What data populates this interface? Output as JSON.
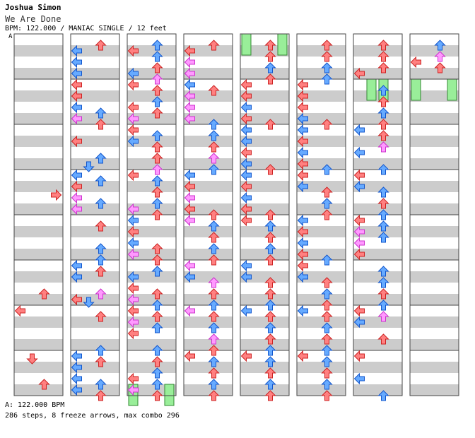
{
  "header": {
    "artist": "Joshua Simon",
    "title": "We Are Done",
    "meta": "BPM: 122.000 / MANIAC SINGLE / 12 feet",
    "bpm_marker": "A"
  },
  "footer": {
    "bpm_reference": "A: 122.000 BPM",
    "summary": "286 steps, 8 freeze arrows, max combo 296"
  },
  "colors": {
    "quarter": "#ff8080",
    "eighth": "#66aaff",
    "sixteenth": "#ff99ff",
    "freeze": "#99ee99",
    "stripe": "#cccccc"
  },
  "chart_data": {
    "type": "table",
    "columns": 8,
    "measures_per_column": 8,
    "lanes": [
      "left",
      "down",
      "up",
      "right"
    ],
    "notes": [
      [
        0,
        3,
        7,
        "r"
      ],
      [
        0,
        5,
        10,
        "r"
      ],
      [
        0,
        6,
        0,
        "r"
      ],
      [
        0,
        7,
        1,
        "r"
      ],
      [
        0,
        7,
        10,
        "r"
      ],
      [
        1,
        0,
        2,
        "r"
      ],
      [
        1,
        0,
        4,
        "b"
      ],
      [
        1,
        0,
        8,
        "b"
      ],
      [
        1,
        0,
        12,
        "b"
      ],
      [
        1,
        1,
        0,
        "r"
      ],
      [
        1,
        1,
        4,
        "r"
      ],
      [
        1,
        1,
        8,
        "b"
      ],
      [
        1,
        1,
        10,
        "b"
      ],
      [
        1,
        1,
        12,
        "m"
      ],
      [
        1,
        1,
        14,
        "r"
      ],
      [
        1,
        2,
        4,
        "r"
      ],
      [
        1,
        2,
        10,
        "b"
      ],
      [
        1,
        2,
        13,
        "b"
      ],
      [
        1,
        3,
        0,
        "b"
      ],
      [
        1,
        3,
        2,
        "b"
      ],
      [
        1,
        3,
        4,
        "r"
      ],
      [
        1,
        3,
        8,
        "m"
      ],
      [
        1,
        3,
        10,
        "b"
      ],
      [
        1,
        3,
        12,
        "m"
      ],
      [
        1,
        4,
        2,
        "r"
      ],
      [
        1,
        4,
        10,
        "b"
      ],
      [
        1,
        4,
        14,
        "b"
      ],
      [
        1,
        5,
        0,
        "b"
      ],
      [
        1,
        5,
        2,
        "r"
      ],
      [
        1,
        5,
        4,
        "b"
      ],
      [
        1,
        5,
        10,
        "m"
      ],
      [
        1,
        5,
        12,
        "r"
      ],
      [
        1,
        5,
        13,
        "b"
      ],
      [
        1,
        6,
        2,
        "r"
      ],
      [
        1,
        6,
        14,
        "b"
      ],
      [
        1,
        7,
        0,
        "b"
      ],
      [
        1,
        7,
        2,
        "r"
      ],
      [
        1,
        7,
        4,
        "b"
      ],
      [
        1,
        7,
        8,
        "b"
      ],
      [
        1,
        7,
        10,
        "b"
      ],
      [
        1,
        7,
        12,
        "b"
      ],
      [
        1,
        7,
        14,
        "r"
      ],
      [
        2,
        0,
        2,
        "b"
      ],
      [
        2,
        0,
        4,
        "r"
      ],
      [
        2,
        0,
        6,
        "b"
      ],
      [
        2,
        0,
        10,
        "r"
      ],
      [
        2,
        0,
        12,
        "b"
      ],
      [
        2,
        0,
        14,
        "m"
      ],
      [
        2,
        1,
        0,
        "r"
      ],
      [
        2,
        1,
        2,
        "r"
      ],
      [
        2,
        1,
        6,
        "b"
      ],
      [
        2,
        1,
        8,
        "r"
      ],
      [
        2,
        1,
        10,
        "r"
      ],
      [
        2,
        1,
        12,
        "m"
      ],
      [
        2,
        2,
        0,
        "r"
      ],
      [
        2,
        2,
        2,
        "b"
      ],
      [
        2,
        2,
        4,
        "b"
      ],
      [
        2,
        2,
        6,
        "r"
      ],
      [
        2,
        2,
        10,
        "r"
      ],
      [
        2,
        2,
        14,
        "m"
      ],
      [
        2,
        3,
        0,
        "r"
      ],
      [
        2,
        3,
        2,
        "b"
      ],
      [
        2,
        3,
        6,
        "r"
      ],
      [
        2,
        3,
        10,
        "b"
      ],
      [
        2,
        3,
        12,
        "m"
      ],
      [
        2,
        3,
        14,
        "r"
      ],
      [
        2,
        4,
        0,
        "b"
      ],
      [
        2,
        4,
        4,
        "r"
      ],
      [
        2,
        4,
        8,
        "b"
      ],
      [
        2,
        4,
        10,
        "r"
      ],
      [
        2,
        4,
        12,
        "m"
      ],
      [
        2,
        4,
        14,
        "r"
      ],
      [
        2,
        5,
        2,
        "b"
      ],
      [
        2,
        5,
        4,
        "b"
      ],
      [
        2,
        5,
        8,
        "r"
      ],
      [
        2,
        5,
        10,
        "r"
      ],
      [
        2,
        5,
        12,
        "m"
      ],
      [
        2,
        5,
        14,
        "b"
      ],
      [
        2,
        6,
        0,
        "r"
      ],
      [
        2,
        6,
        2,
        "r"
      ],
      [
        2,
        6,
        4,
        "m"
      ],
      [
        2,
        6,
        6,
        "b"
      ],
      [
        2,
        6,
        8,
        "r"
      ],
      [
        2,
        6,
        14,
        "b"
      ],
      [
        2,
        7,
        2,
        "r"
      ],
      [
        2,
        7,
        6,
        "b"
      ],
      [
        2,
        7,
        8,
        "r"
      ],
      [
        2,
        7,
        10,
        "b"
      ],
      [
        2,
        7,
        12,
        "m"
      ],
      [
        2,
        7,
        14,
        "r"
      ],
      [
        3,
        0,
        2,
        "r"
      ],
      [
        3,
        0,
        4,
        "r"
      ],
      [
        3,
        0,
        8,
        "m"
      ],
      [
        3,
        0,
        12,
        "m"
      ],
      [
        3,
        1,
        0,
        "b"
      ],
      [
        3,
        1,
        2,
        "r"
      ],
      [
        3,
        1,
        4,
        "m"
      ],
      [
        3,
        1,
        8,
        "m"
      ],
      [
        3,
        1,
        12,
        "m"
      ],
      [
        3,
        1,
        14,
        "b"
      ],
      [
        3,
        2,
        2,
        "b"
      ],
      [
        3,
        2,
        6,
        "r"
      ],
      [
        3,
        2,
        10,
        "m"
      ],
      [
        3,
        2,
        14,
        "b"
      ],
      [
        3,
        3,
        0,
        "b"
      ],
      [
        3,
        3,
        4,
        "r"
      ],
      [
        3,
        3,
        8,
        "m"
      ],
      [
        3,
        3,
        12,
        "r"
      ],
      [
        3,
        3,
        14,
        "r"
      ],
      [
        3,
        4,
        0,
        "m"
      ],
      [
        3,
        4,
        2,
        "b"
      ],
      [
        3,
        4,
        6,
        "r"
      ],
      [
        3,
        4,
        10,
        "b"
      ],
      [
        3,
        4,
        14,
        "r"
      ],
      [
        3,
        5,
        0,
        "m"
      ],
      [
        3,
        5,
        4,
        "b"
      ],
      [
        3,
        5,
        6,
        "m"
      ],
      [
        3,
        5,
        10,
        "r"
      ],
      [
        3,
        5,
        14,
        "b"
      ],
      [
        3,
        6,
        0,
        "m"
      ],
      [
        3,
        6,
        2,
        "r"
      ],
      [
        3,
        6,
        6,
        "b"
      ],
      [
        3,
        6,
        10,
        "m"
      ],
      [
        3,
        6,
        14,
        "r"
      ],
      [
        3,
        7,
        0,
        "r"
      ],
      [
        3,
        7,
        2,
        "b"
      ],
      [
        3,
        7,
        6,
        "r"
      ],
      [
        3,
        7,
        10,
        "b"
      ],
      [
        3,
        7,
        14,
        "r"
      ],
      [
        4,
        0,
        2,
        "r"
      ],
      [
        4,
        0,
        6,
        "r"
      ],
      [
        4,
        0,
        10,
        "b"
      ],
      [
        4,
        0,
        14,
        "r"
      ],
      [
        4,
        1,
        0,
        "r"
      ],
      [
        4,
        1,
        4,
        "r"
      ],
      [
        4,
        1,
        8,
        "b"
      ],
      [
        4,
        1,
        12,
        "r"
      ],
      [
        4,
        1,
        14,
        "r"
      ],
      [
        4,
        2,
        0,
        "b"
      ],
      [
        4,
        2,
        4,
        "b"
      ],
      [
        4,
        2,
        8,
        "r"
      ],
      [
        4,
        2,
        12,
        "b"
      ],
      [
        4,
        2,
        14,
        "r"
      ],
      [
        4,
        3,
        0,
        "b"
      ],
      [
        4,
        3,
        4,
        "r"
      ],
      [
        4,
        3,
        8,
        "b"
      ],
      [
        4,
        3,
        12,
        "r"
      ],
      [
        4,
        3,
        14,
        "r"
      ],
      [
        4,
        4,
        0,
        "r"
      ],
      [
        4,
        4,
        2,
        "b"
      ],
      [
        4,
        4,
        6,
        "r"
      ],
      [
        4,
        4,
        10,
        "b"
      ],
      [
        4,
        4,
        14,
        "r"
      ],
      [
        4,
        5,
        0,
        "b"
      ],
      [
        4,
        5,
        4,
        "b"
      ],
      [
        4,
        5,
        6,
        "r"
      ],
      [
        4,
        5,
        10,
        "r"
      ],
      [
        4,
        5,
        14,
        "b"
      ],
      [
        4,
        6,
        0,
        "b"
      ],
      [
        4,
        6,
        2,
        "r"
      ],
      [
        4,
        6,
        6,
        "b"
      ],
      [
        4,
        6,
        10,
        "r"
      ],
      [
        4,
        6,
        14,
        "b"
      ],
      [
        4,
        7,
        0,
        "r"
      ],
      [
        4,
        7,
        2,
        "b"
      ],
      [
        4,
        7,
        6,
        "r"
      ],
      [
        4,
        7,
        10,
        "b"
      ],
      [
        4,
        7,
        14,
        "r"
      ],
      [
        5,
        0,
        2,
        "r"
      ],
      [
        5,
        0,
        6,
        "r"
      ],
      [
        5,
        0,
        10,
        "b"
      ],
      [
        5,
        0,
        14,
        "b"
      ],
      [
        5,
        1,
        0,
        "r"
      ],
      [
        5,
        1,
        4,
        "r"
      ],
      [
        5,
        1,
        8,
        "r"
      ],
      [
        5,
        1,
        12,
        "b"
      ],
      [
        5,
        1,
        14,
        "r"
      ],
      [
        5,
        2,
        0,
        "b"
      ],
      [
        5,
        2,
        4,
        "r"
      ],
      [
        5,
        2,
        8,
        "b"
      ],
      [
        5,
        2,
        12,
        "r"
      ],
      [
        5,
        2,
        14,
        "b"
      ],
      [
        5,
        3,
        0,
        "r"
      ],
      [
        5,
        3,
        4,
        "b"
      ],
      [
        5,
        3,
        6,
        "r"
      ],
      [
        5,
        3,
        10,
        "b"
      ],
      [
        5,
        3,
        14,
        "r"
      ],
      [
        5,
        4,
        0,
        "b"
      ],
      [
        5,
        4,
        4,
        "r"
      ],
      [
        5,
        4,
        8,
        "b"
      ],
      [
        5,
        4,
        12,
        "r"
      ],
      [
        5,
        4,
        14,
        "b"
      ],
      [
        5,
        5,
        0,
        "r"
      ],
      [
        5,
        5,
        4,
        "b"
      ],
      [
        5,
        5,
        6,
        "r"
      ],
      [
        5,
        5,
        10,
        "b"
      ],
      [
        5,
        5,
        14,
        "r"
      ],
      [
        5,
        6,
        0,
        "b"
      ],
      [
        5,
        6,
        2,
        "r"
      ],
      [
        5,
        6,
        6,
        "b"
      ],
      [
        5,
        6,
        10,
        "r"
      ],
      [
        5,
        6,
        14,
        "b"
      ],
      [
        5,
        7,
        0,
        "r"
      ],
      [
        5,
        7,
        2,
        "b"
      ],
      [
        5,
        7,
        6,
        "r"
      ],
      [
        5,
        7,
        10,
        "b"
      ],
      [
        5,
        7,
        14,
        "r"
      ],
      [
        6,
        0,
        2,
        "r"
      ],
      [
        6,
        0,
        6,
        "r"
      ],
      [
        6,
        0,
        10,
        "r"
      ],
      [
        6,
        0,
        12,
        "r"
      ],
      [
        6,
        1,
        2,
        "b"
      ],
      [
        6,
        1,
        6,
        "r"
      ],
      [
        6,
        1,
        10,
        "b"
      ],
      [
        6,
        1,
        14,
        "r"
      ],
      [
        6,
        2,
        0,
        "b"
      ],
      [
        6,
        2,
        2,
        "r"
      ],
      [
        6,
        2,
        6,
        "m"
      ],
      [
        6,
        2,
        8,
        "b"
      ],
      [
        6,
        2,
        14,
        "b"
      ],
      [
        6,
        3,
        0,
        "r"
      ],
      [
        6,
        3,
        4,
        "b"
      ],
      [
        6,
        3,
        6,
        "b"
      ],
      [
        6,
        3,
        10,
        "r"
      ],
      [
        6,
        3,
        14,
        "b"
      ],
      [
        6,
        4,
        0,
        "r"
      ],
      [
        6,
        4,
        2,
        "b"
      ],
      [
        6,
        4,
        4,
        "m"
      ],
      [
        6,
        4,
        6,
        "b"
      ],
      [
        6,
        4,
        8,
        "m"
      ],
      [
        6,
        4,
        12,
        "r"
      ],
      [
        6,
        5,
        2,
        "b"
      ],
      [
        6,
        5,
        6,
        "b"
      ],
      [
        6,
        5,
        10,
        "r"
      ],
      [
        6,
        5,
        14,
        "b"
      ],
      [
        6,
        6,
        0,
        "r"
      ],
      [
        6,
        6,
        2,
        "m"
      ],
      [
        6,
        6,
        4,
        "b"
      ],
      [
        6,
        6,
        10,
        "r"
      ],
      [
        6,
        7,
        0,
        "r"
      ],
      [
        6,
        7,
        8,
        "b"
      ],
      [
        6,
        7,
        14,
        "b"
      ],
      [
        7,
        0,
        2,
        "b"
      ],
      [
        7,
        0,
        6,
        "m"
      ],
      [
        7,
        0,
        8,
        "r"
      ],
      [
        7,
        0,
        10,
        "r"
      ]
    ],
    "freezes": [
      [
        2,
        7,
        12,
        16,
        0
      ],
      [
        2,
        7,
        12,
        16,
        3
      ],
      [
        4,
        0,
        0,
        4,
        0
      ],
      [
        4,
        0,
        0,
        4,
        3
      ],
      [
        6,
        1,
        0,
        4,
        1
      ],
      [
        6,
        1,
        0,
        4,
        2
      ],
      [
        7,
        1,
        0,
        4,
        0
      ],
      [
        7,
        1,
        0,
        4,
        3
      ]
    ]
  }
}
